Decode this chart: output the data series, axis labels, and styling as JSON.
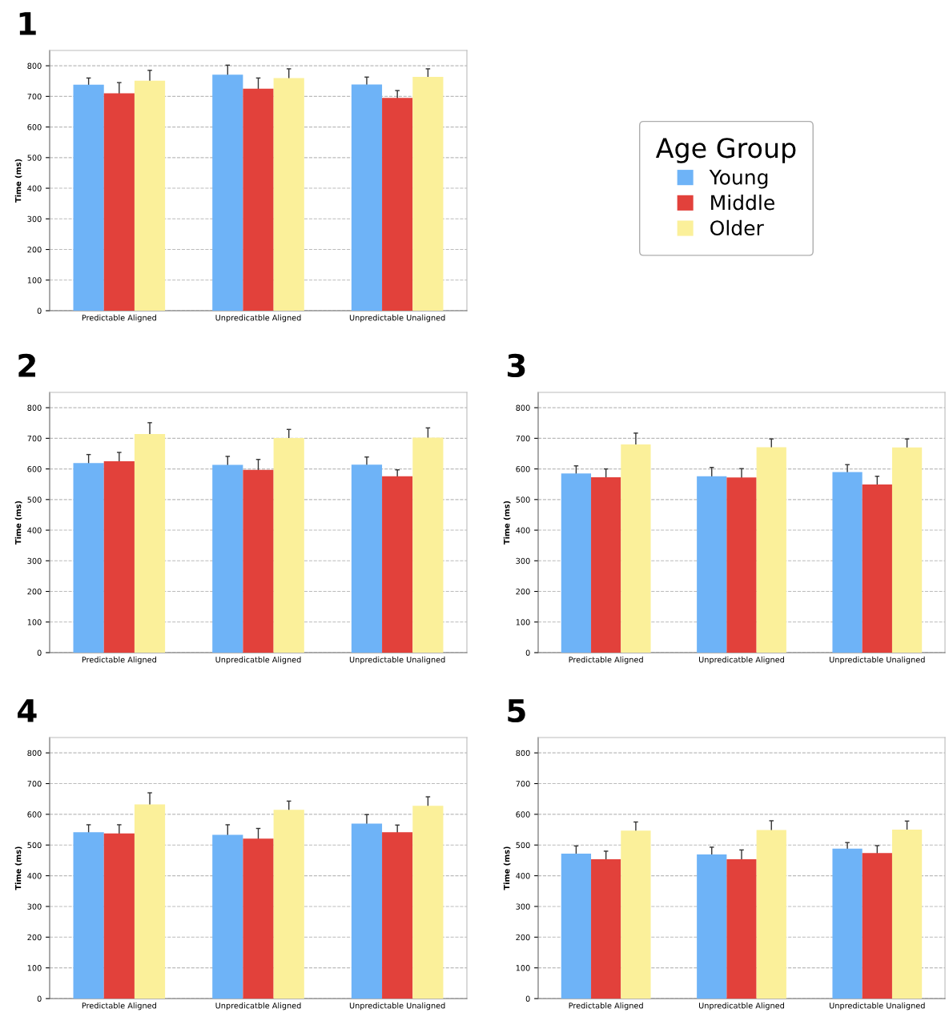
{
  "chart_data": [
    {
      "type": "bar",
      "title": "1",
      "ylabel": "Time (ms)",
      "categories": [
        "Predictable Aligned",
        "Unpredicatble Aligned",
        "Unpredictable Unaligned"
      ],
      "ylim": [
        0,
        850
      ],
      "yticks": [
        0,
        100,
        200,
        300,
        400,
        500,
        600,
        700,
        800
      ],
      "grid": "y",
      "legend": "right",
      "legend_title": "Age Group",
      "series": [
        {
          "name": "Young",
          "color": "#6eb3f7",
          "values": [
            738,
            771,
            739
          ],
          "errors": [
            22,
            31,
            24
          ]
        },
        {
          "name": "Middle",
          "color": "#e2413b",
          "values": [
            710,
            725,
            695
          ],
          "errors": [
            35,
            35,
            24
          ]
        },
        {
          "name": "Older",
          "color": "#fbf09a",
          "values": [
            751,
            760,
            764
          ],
          "errors": [
            34,
            30,
            26
          ]
        }
      ]
    },
    {
      "type": "bar",
      "title": "2",
      "ylabel": "Time (ms)",
      "categories": [
        "Predictable Aligned",
        "Unpredicatble Aligned",
        "Unpredictable Unaligned"
      ],
      "ylim": [
        0,
        850
      ],
      "yticks": [
        0,
        100,
        200,
        300,
        400,
        500,
        600,
        700,
        800
      ],
      "grid": "y",
      "series": [
        {
          "color": "#6eb3f7",
          "values": [
            619,
            613,
            614
          ],
          "errors": [
            28,
            28,
            25
          ]
        },
        {
          "color": "#e2413b",
          "values": [
            625,
            597,
            576
          ],
          "errors": [
            29,
            34,
            21
          ]
        },
        {
          "color": "#fbf09a",
          "values": [
            714,
            701,
            702
          ],
          "errors": [
            37,
            28,
            32
          ]
        }
      ]
    },
    {
      "type": "bar",
      "title": "3",
      "ylabel": "Time (ms)",
      "categories": [
        "Predictable Aligned",
        "Unpredicatble Aligned",
        "Unpredictable Unaligned"
      ],
      "ylim": [
        0,
        850
      ],
      "yticks": [
        0,
        100,
        200,
        300,
        400,
        500,
        600,
        700,
        800
      ],
      "grid": "y",
      "series": [
        {
          "color": "#6eb3f7",
          "values": [
            585,
            576,
            590
          ],
          "errors": [
            25,
            29,
            24
          ]
        },
        {
          "color": "#e2413b",
          "values": [
            573,
            572,
            549
          ],
          "errors": [
            27,
            29,
            27
          ]
        },
        {
          "color": "#fbf09a",
          "values": [
            680,
            671,
            670
          ],
          "errors": [
            37,
            27,
            28
          ]
        }
      ]
    },
    {
      "type": "bar",
      "title": "4",
      "ylabel": "Time (ms)",
      "categories": [
        "Predictable Aligned",
        "Unpredicatble Aligned",
        "Unpredictable Unaligned"
      ],
      "ylim": [
        0,
        850
      ],
      "yticks": [
        0,
        100,
        200,
        300,
        400,
        500,
        600,
        700,
        800
      ],
      "grid": "y",
      "series": [
        {
          "color": "#6eb3f7",
          "values": [
            542,
            533,
            570
          ],
          "errors": [
            24,
            33,
            29
          ]
        },
        {
          "color": "#e2413b",
          "values": [
            538,
            521,
            542
          ],
          "errors": [
            28,
            33,
            23
          ]
        },
        {
          "color": "#fbf09a",
          "values": [
            632,
            615,
            628
          ],
          "errors": [
            38,
            28,
            29
          ]
        }
      ]
    },
    {
      "type": "bar",
      "title": "5",
      "ylabel": "Time (ms)",
      "categories": [
        "Predictable Aligned",
        "Unpredicatble Aligned",
        "Unpredictable Unaligned"
      ],
      "ylim": [
        0,
        850
      ],
      "yticks": [
        0,
        100,
        200,
        300,
        400,
        500,
        600,
        700,
        800
      ],
      "grid": "y",
      "series": [
        {
          "color": "#6eb3f7",
          "values": [
            472,
            469,
            488
          ],
          "errors": [
            25,
            24,
            20
          ]
        },
        {
          "color": "#e2413b",
          "values": [
            454,
            454,
            474
          ],
          "errors": [
            26,
            30,
            24
          ]
        },
        {
          "color": "#fbf09a",
          "values": [
            547,
            549,
            550
          ],
          "errors": [
            28,
            30,
            28
          ]
        }
      ]
    }
  ]
}
